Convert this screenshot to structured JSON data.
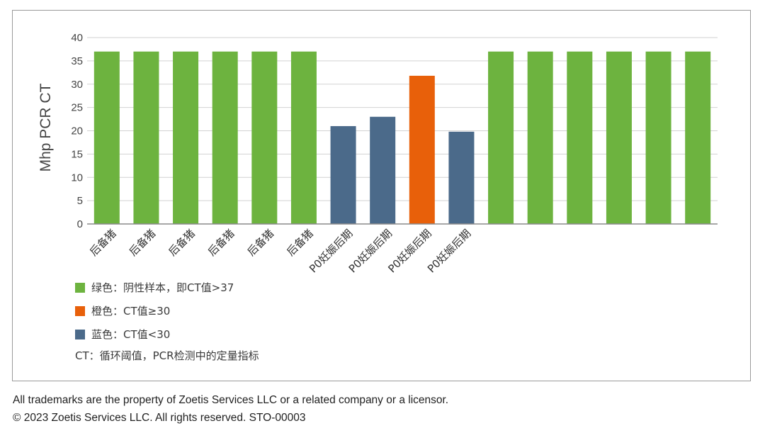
{
  "chart_data": {
    "type": "bar",
    "ylabel": "Mhp PCR CT",
    "ylim": [
      0,
      40
    ],
    "yticks": [
      "0",
      "5",
      "10",
      "15",
      "20",
      "25",
      "30",
      "35",
      "40"
    ],
    "categories": [
      "后备猪",
      "后备猪",
      "后备猪",
      "后备猪",
      "后备猪",
      "后备猪",
      "P0妊娠后期",
      "P0妊娠后期",
      "P0妊娠后期",
      "P0妊娠后期",
      "",
      "",
      "",
      "",
      "",
      ""
    ],
    "values": [
      37,
      37,
      37,
      37,
      37,
      37,
      21,
      23,
      31.8,
      19.8,
      37,
      37,
      37,
      37,
      37,
      37
    ],
    "bar_groups": [
      "green",
      "green",
      "green",
      "green",
      "green",
      "green",
      "blue",
      "blue",
      "orange",
      "blue",
      "green",
      "green",
      "green",
      "green",
      "green",
      "green"
    ],
    "colors": {
      "green": "#6db33f",
      "orange": "#e8600a",
      "blue": "#4b6a8a"
    },
    "grid": true
  },
  "legend": [
    {
      "color": "#6db33f",
      "label": "绿色：阴性样本，即CT值>37"
    },
    {
      "color": "#e8600a",
      "label": "橙色：CT值≥30"
    },
    {
      "color": "#4b6a8a",
      "label": "蓝色：CT值<30"
    }
  ],
  "legend_note": "CT：循环阈值，PCR检测中的定量指标",
  "footer": {
    "line1": "All trademarks are the property of Zoetis Services LLC or a related company or a licensor.",
    "line2": "© 2023 Zoetis Services LLC. All rights reserved. STO-00003"
  }
}
